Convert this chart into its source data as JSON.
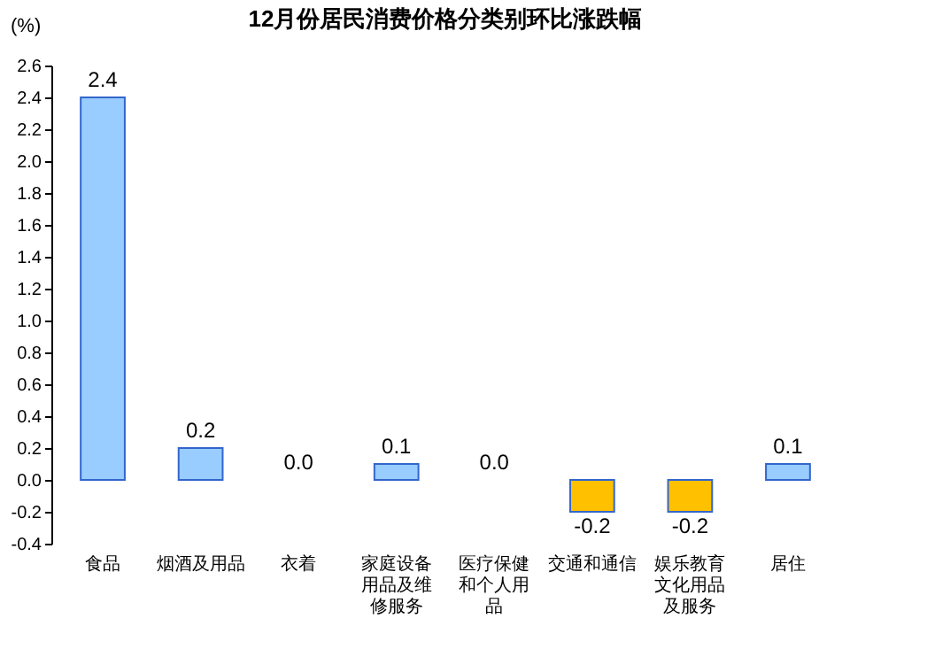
{
  "chart_data": {
    "type": "bar",
    "title": "12月份居民消费价格分类别环比涨跌幅",
    "ylabel": "(%)",
    "categories": [
      "食品",
      "烟酒及用品",
      "衣着",
      "家庭设备用品及维修服务",
      "医疗保健和个人用品",
      "交通和通信",
      "娱乐教育文化用品及服务",
      "居住"
    ],
    "values": [
      2.4,
      0.2,
      0.0,
      0.1,
      0.0,
      -0.2,
      -0.2,
      0.1
    ],
    "value_labels": [
      "2.4",
      "0.2",
      "0.0",
      "0.1",
      "0.0",
      "-0.2",
      "-0.2",
      "0.1"
    ],
    "colors": [
      "#99ccff",
      "#99ccff",
      "#99ccff",
      "#99ccff",
      "#99ccff",
      "#ffc000",
      "#ffc000",
      "#99ccff"
    ],
    "ylim": [
      -0.4,
      2.6
    ],
    "yticks": [
      -0.4,
      -0.2,
      {
        "value": 0,
        "label": "0.0"
      },
      0.2,
      0.4,
      0.6,
      0.8,
      {
        "value": 1,
        "label": "1.0"
      },
      1.2,
      1.4,
      1.6,
      1.8,
      {
        "value": 2,
        "label": "2.0"
      },
      2.2,
      2.4,
      2.6
    ],
    "grid": false,
    "legend": false
  }
}
